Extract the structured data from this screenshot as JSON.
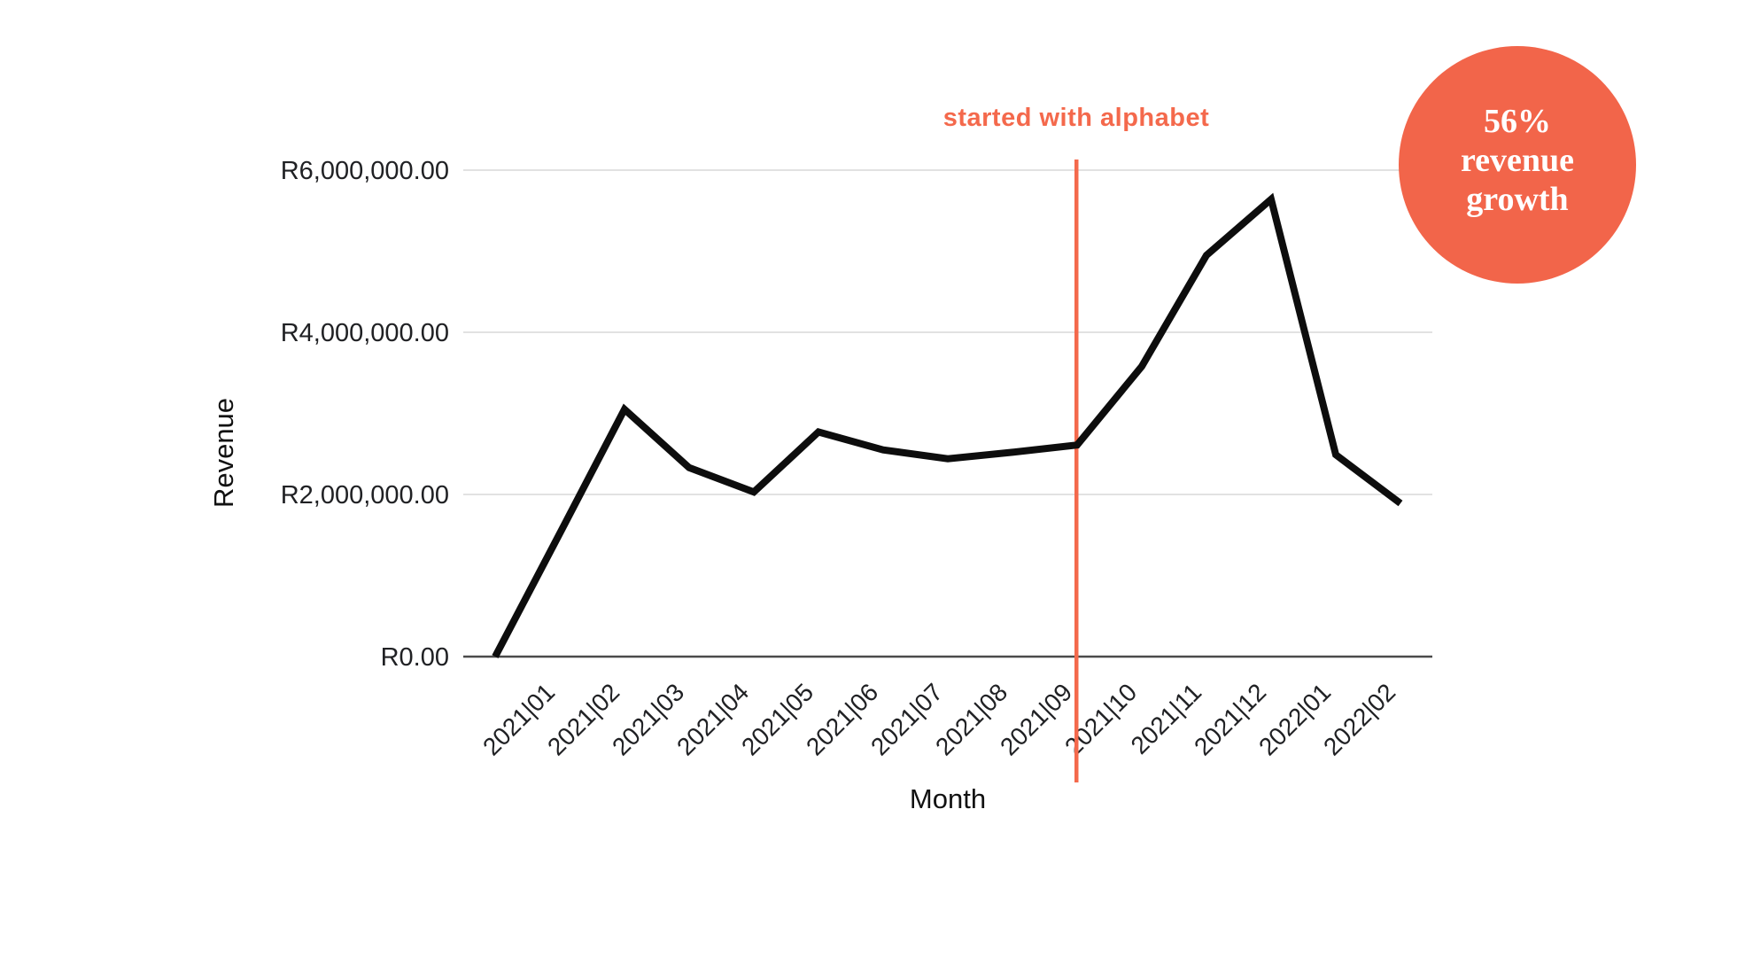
{
  "canvas": {
    "background": "#ffffff"
  },
  "colors": {
    "canvas_bg": "#ffffff",
    "accent": "#f4694c",
    "badge_fill": "#f2654a",
    "badge_text": "#ffffff",
    "series_line": "#0d0d0d",
    "gridline": "#d9d9d9",
    "axis_line": "#4a4a4a",
    "tick_label": "#202124",
    "axis_title": "#111111"
  },
  "badge": {
    "lines": [
      "56%",
      "revenue",
      "growth"
    ]
  },
  "chart_data": {
    "type": "line",
    "title": "",
    "xlabel": "Month",
    "ylabel": "Revenue",
    "legend_position": "none",
    "grid": true,
    "x_tick_rotation_deg": -45,
    "ylim": [
      0,
      6000000
    ],
    "currency_prefix": "R",
    "y_ticks": [
      {
        "value": 0,
        "label": "R0.00"
      },
      {
        "value": 2000000,
        "label": "R2,000,000.00"
      },
      {
        "value": 4000000,
        "label": "R4,000,000.00"
      },
      {
        "value": 6000000,
        "label": "R6,000,000.00"
      }
    ],
    "categories": [
      "",
      "2021|01",
      "2021|02",
      "2021|03",
      "2021|04",
      "2021|05",
      "2021|06",
      "2021|07",
      "2021|08",
      "2021|09",
      "2021|10",
      "2021|11",
      "2021|12",
      "2022|01",
      "2022|02"
    ],
    "series": [
      {
        "name": "Revenue",
        "values": [
          0,
          1520000,
          3050000,
          2330000,
          2030000,
          2770000,
          2550000,
          2440000,
          2520000,
          2610000,
          3580000,
          4950000,
          5640000,
          2490000,
          1890000
        ]
      }
    ],
    "annotation": {
      "label": "started with alphabet",
      "at_category": "2021|09"
    }
  }
}
